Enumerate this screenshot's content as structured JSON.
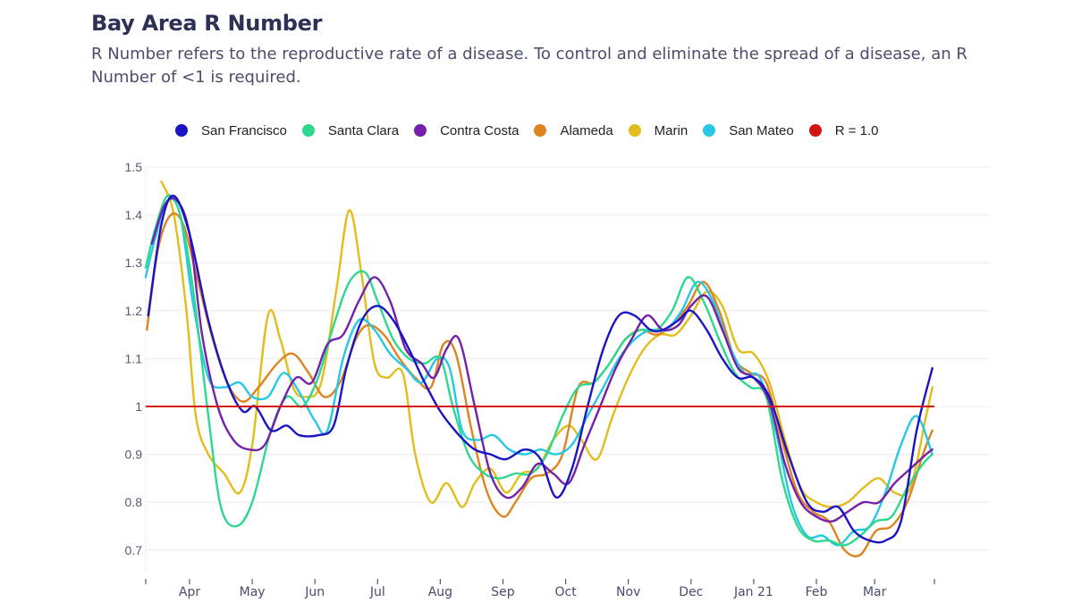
{
  "header": {
    "title": "Bay Area R Number",
    "subtitle": "R Number refers to the reproductive rate of a disease. To control and eliminate the spread of a disease, an R Number of <1 is required."
  },
  "legend": [
    {
      "label": "San Francisco",
      "color": "#1a14c4"
    },
    {
      "label": "Santa Clara",
      "color": "#2ed98f"
    },
    {
      "label": "Contra Costa",
      "color": "#7420a8"
    },
    {
      "label": "Alameda",
      "color": "#dd8420"
    },
    {
      "label": "Marin",
      "color": "#e3bd1c"
    },
    {
      "label": "San Mateo",
      "color": "#26c8e6"
    },
    {
      "label": "R = 1.0",
      "color": "#d41414"
    }
  ],
  "chart_data": {
    "type": "line",
    "title": "Bay Area R Number",
    "xlabel": "",
    "ylabel": "",
    "x_unit": "months since 2020-03-01 (Apr = 1, Jan 21 = 10)",
    "xlim": [
      0.3,
      12.88
    ],
    "ylim": [
      0.64,
      1.51
    ],
    "yticks": [
      0.7,
      0.8,
      0.9,
      1,
      1.1,
      1.2,
      1.3,
      1.4,
      1.5
    ],
    "ytick_labels": [
      "0.7",
      "0.8",
      "0.9",
      "1",
      "1.1",
      "1.2",
      "1.3",
      "1.4",
      "1.5"
    ],
    "xticks": [
      0.3,
      1,
      2,
      3,
      4,
      5,
      6,
      7,
      8,
      9,
      10,
      11,
      11.93,
      12.88
    ],
    "xtick_labels": [
      "",
      "Apr",
      "May",
      "Jun",
      "Jul",
      "Aug",
      "Sep",
      "Oct",
      "Nov",
      "Dec",
      "Jan 21",
      "Feb",
      "Mar",
      ""
    ],
    "grid": true,
    "legend_position": "top",
    "reference_line": {
      "name": "R = 1.0",
      "y": 1.0,
      "color": "#d41414"
    },
    "series": [
      {
        "name": "San Francisco",
        "color": "#1a14c4",
        "x": [
          0.34,
          0.55,
          0.75,
          1.0,
          1.3,
          1.6,
          1.85,
          2.05,
          2.3,
          2.55,
          2.75,
          3.05,
          3.3,
          3.5,
          3.75,
          4.0,
          4.25,
          4.5,
          4.75,
          5.0,
          5.3,
          5.55,
          5.8,
          6.05,
          6.35,
          6.6,
          6.85,
          7.1,
          7.35,
          7.6,
          7.85,
          8.1,
          8.35,
          8.55,
          8.8,
          9.0,
          9.25,
          9.5,
          9.75,
          10.0,
          10.25,
          10.55,
          10.85,
          11.1,
          11.35,
          11.6,
          11.85,
          12.1,
          12.35,
          12.6,
          12.85
        ],
        "y": [
          1.19,
          1.38,
          1.44,
          1.36,
          1.18,
          1.05,
          0.99,
          1.0,
          0.95,
          0.96,
          0.94,
          0.94,
          0.96,
          1.08,
          1.18,
          1.21,
          1.18,
          1.12,
          1.05,
          0.99,
          0.94,
          0.91,
          0.9,
          0.89,
          0.91,
          0.89,
          0.81,
          0.87,
          1.0,
          1.12,
          1.19,
          1.19,
          1.16,
          1.16,
          1.18,
          1.2,
          1.16,
          1.1,
          1.06,
          1.06,
          1.02,
          0.9,
          0.8,
          0.78,
          0.79,
          0.74,
          0.72,
          0.72,
          0.76,
          0.95,
          1.08
        ]
      },
      {
        "name": "Santa Clara",
        "color": "#2ed98f",
        "x": [
          0.3,
          0.45,
          0.65,
          0.85,
          1.05,
          1.3,
          1.5,
          1.75,
          2.0,
          2.3,
          2.55,
          2.8,
          3.05,
          3.3,
          3.55,
          3.8,
          4.0,
          4.25,
          4.5,
          4.75,
          5.0,
          5.2,
          5.45,
          5.7,
          5.95,
          6.2,
          6.45,
          6.7,
          6.95,
          7.2,
          7.45,
          7.7,
          7.95,
          8.2,
          8.45,
          8.7,
          8.95,
          9.2,
          9.45,
          9.7,
          9.95,
          10.2,
          10.45,
          10.7,
          10.95,
          11.2,
          11.45,
          11.7,
          11.95,
          12.2,
          12.45,
          12.7,
          12.85
        ],
        "y": [
          1.29,
          1.37,
          1.44,
          1.4,
          1.25,
          0.98,
          0.79,
          0.75,
          0.8,
          0.95,
          1.02,
          1.0,
          1.06,
          1.17,
          1.26,
          1.28,
          1.22,
          1.14,
          1.1,
          1.09,
          1.1,
          1.0,
          0.9,
          0.86,
          0.85,
          0.86,
          0.86,
          0.9,
          0.98,
          1.04,
          1.05,
          1.09,
          1.14,
          1.16,
          1.16,
          1.2,
          1.27,
          1.22,
          1.14,
          1.07,
          1.04,
          1.02,
          0.85,
          0.75,
          0.72,
          0.72,
          0.71,
          0.73,
          0.76,
          0.77,
          0.83,
          0.88,
          0.9
        ]
      },
      {
        "name": "Contra Costa",
        "color": "#7420a8",
        "x": [
          0.4,
          0.6,
          0.8,
          1.0,
          1.2,
          1.45,
          1.7,
          1.95,
          2.2,
          2.45,
          2.7,
          2.95,
          3.2,
          3.45,
          3.7,
          3.95,
          4.2,
          4.45,
          4.7,
          4.9,
          5.1,
          5.3,
          5.55,
          5.8,
          6.05,
          6.3,
          6.55,
          6.8,
          7.05,
          7.3,
          7.55,
          7.8,
          8.05,
          8.3,
          8.55,
          8.8,
          9.0,
          9.25,
          9.5,
          9.75,
          10.0,
          10.25,
          10.5,
          10.75,
          11.0,
          11.25,
          11.5,
          11.75,
          12.0,
          12.25,
          12.5,
          12.75,
          12.85
        ],
        "y": [
          1.34,
          1.42,
          1.43,
          1.36,
          1.15,
          1.0,
          0.93,
          0.91,
          0.92,
          1.0,
          1.06,
          1.05,
          1.13,
          1.15,
          1.22,
          1.27,
          1.22,
          1.12,
          1.09,
          1.06,
          1.12,
          1.14,
          1.0,
          0.86,
          0.81,
          0.83,
          0.88,
          0.86,
          0.84,
          0.92,
          1.0,
          1.08,
          1.14,
          1.19,
          1.16,
          1.17,
          1.21,
          1.23,
          1.16,
          1.08,
          1.06,
          1.01,
          0.88,
          0.8,
          0.77,
          0.76,
          0.78,
          0.8,
          0.8,
          0.84,
          0.87,
          0.9,
          0.91
        ]
      },
      {
        "name": "Alameda",
        "color": "#dd8420",
        "x": [
          0.32,
          0.5,
          0.7,
          0.9,
          1.1,
          1.35,
          1.6,
          1.85,
          2.1,
          2.4,
          2.65,
          2.9,
          3.15,
          3.4,
          3.65,
          3.85,
          4.1,
          4.35,
          4.6,
          4.85,
          5.05,
          5.25,
          5.5,
          5.75,
          6.0,
          6.2,
          6.45,
          6.7,
          6.95,
          7.2,
          7.45,
          7.7,
          7.95,
          8.2,
          8.45,
          8.7,
          8.95,
          9.2,
          9.45,
          9.7,
          9.95,
          10.2,
          10.45,
          10.7,
          10.95,
          11.2,
          11.45,
          11.7,
          11.95,
          12.2,
          12.45,
          12.7,
          12.85
        ],
        "y": [
          1.16,
          1.33,
          1.4,
          1.38,
          1.28,
          1.15,
          1.05,
          1.01,
          1.04,
          1.09,
          1.11,
          1.07,
          1.02,
          1.05,
          1.14,
          1.17,
          1.15,
          1.1,
          1.06,
          1.04,
          1.13,
          1.11,
          0.95,
          0.82,
          0.77,
          0.8,
          0.85,
          0.86,
          0.9,
          1.04,
          1.05,
          1.09,
          1.14,
          1.16,
          1.15,
          1.17,
          1.21,
          1.26,
          1.2,
          1.1,
          1.07,
          1.05,
          0.93,
          0.82,
          0.78,
          0.76,
          0.7,
          0.69,
          0.74,
          0.75,
          0.8,
          0.9,
          0.95
        ]
      },
      {
        "name": "Marin",
        "color": "#e3bd1c",
        "x": [
          0.55,
          0.75,
          0.95,
          1.1,
          1.3,
          1.55,
          1.8,
          2.0,
          2.25,
          2.45,
          2.65,
          2.85,
          3.1,
          3.35,
          3.55,
          3.75,
          3.95,
          4.15,
          4.4,
          4.6,
          4.85,
          5.1,
          5.35,
          5.55,
          5.8,
          6.05,
          6.3,
          6.55,
          6.8,
          7.05,
          7.25,
          7.5,
          7.75,
          8.0,
          8.25,
          8.5,
          8.75,
          9.0,
          9.25,
          9.5,
          9.75,
          10.0,
          10.25,
          10.5,
          10.75,
          11.0,
          11.25,
          11.5,
          11.75,
          12.0,
          12.25,
          12.5,
          12.75,
          12.85
        ],
        "y": [
          1.47,
          1.4,
          1.2,
          0.98,
          0.9,
          0.86,
          0.82,
          0.92,
          1.19,
          1.14,
          1.04,
          1.02,
          1.05,
          1.25,
          1.41,
          1.27,
          1.09,
          1.06,
          1.07,
          0.9,
          0.8,
          0.84,
          0.79,
          0.84,
          0.87,
          0.82,
          0.86,
          0.87,
          0.93,
          0.96,
          0.93,
          0.89,
          0.98,
          1.06,
          1.12,
          1.15,
          1.15,
          1.19,
          1.24,
          1.21,
          1.12,
          1.11,
          1.05,
          0.93,
          0.83,
          0.8,
          0.79,
          0.8,
          0.83,
          0.85,
          0.82,
          0.83,
          0.98,
          1.04
        ]
      },
      {
        "name": "San Mateo",
        "color": "#26c8e6",
        "x": [
          0.3,
          0.45,
          0.65,
          0.85,
          1.05,
          1.3,
          1.55,
          1.8,
          2.0,
          2.25,
          2.5,
          2.75,
          3.0,
          3.2,
          3.45,
          3.7,
          3.95,
          4.2,
          4.45,
          4.7,
          4.95,
          5.15,
          5.35,
          5.6,
          5.85,
          6.1,
          6.35,
          6.6,
          6.85,
          7.1,
          7.35,
          7.6,
          7.85,
          8.1,
          8.35,
          8.6,
          8.85,
          9.1,
          9.35,
          9.6,
          9.85,
          10.1,
          10.35,
          10.6,
          10.85,
          11.1,
          11.35,
          11.6,
          11.85,
          12.1,
          12.35,
          12.6,
          12.85
        ],
        "y": [
          1.27,
          1.35,
          1.43,
          1.4,
          1.22,
          1.06,
          1.04,
          1.05,
          1.02,
          1.02,
          1.07,
          1.03,
          0.97,
          0.95,
          1.1,
          1.18,
          1.16,
          1.11,
          1.08,
          1.05,
          1.1,
          1.08,
          0.95,
          0.93,
          0.94,
          0.91,
          0.9,
          0.91,
          0.9,
          0.92,
          0.98,
          1.04,
          1.1,
          1.14,
          1.16,
          1.16,
          1.2,
          1.26,
          1.22,
          1.13,
          1.07,
          1.06,
          0.95,
          0.8,
          0.73,
          0.73,
          0.71,
          0.74,
          0.75,
          0.82,
          0.92,
          0.98,
          0.9
        ]
      }
    ]
  }
}
